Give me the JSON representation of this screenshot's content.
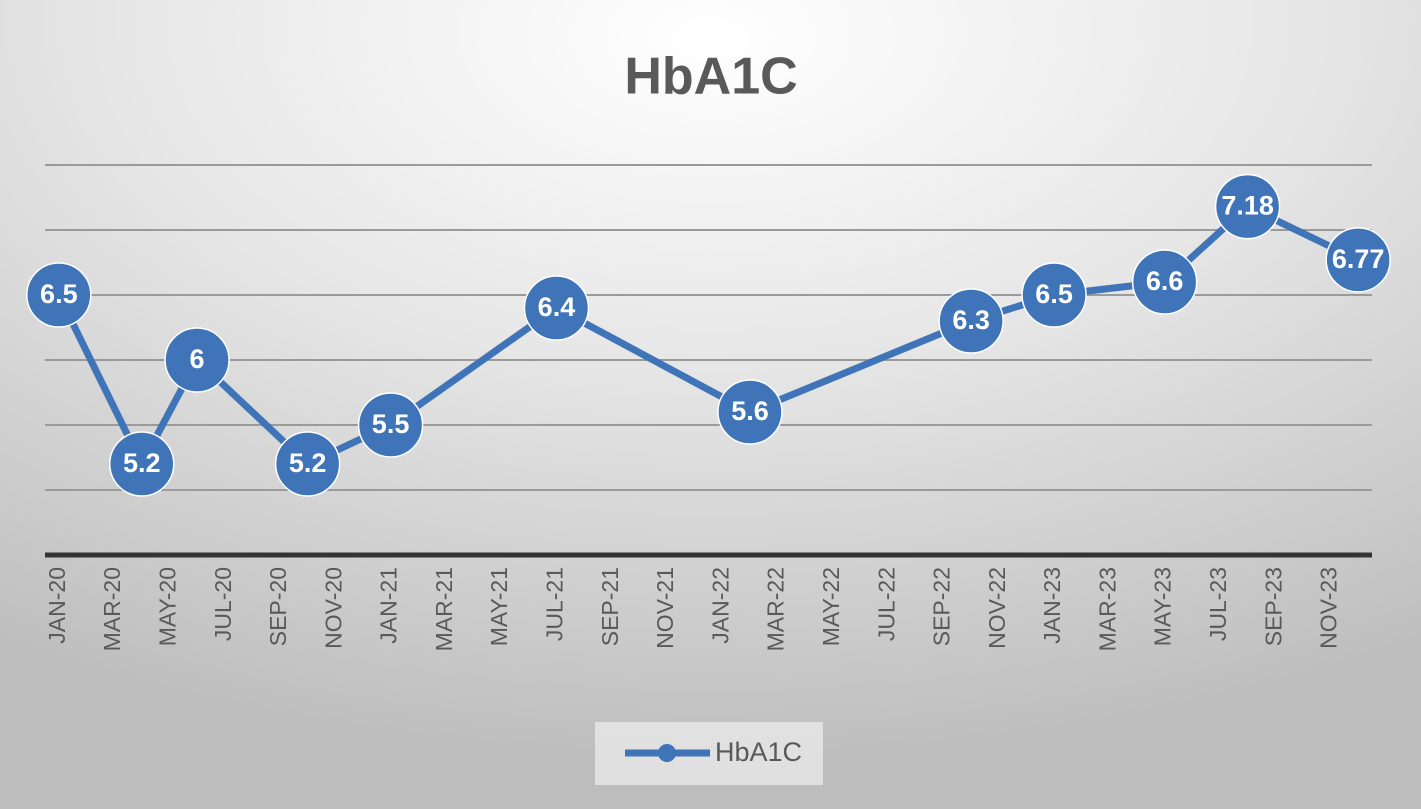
{
  "chart_data": {
    "type": "line",
    "title": "HbA1C",
    "x": [
      0,
      3,
      5,
      9,
      12,
      18,
      25,
      33,
      36,
      40,
      43,
      47
    ],
    "xlim": [
      -0.5,
      47.5
    ],
    "xticks": [
      {
        "value": 0,
        "label": "JAN-20"
      },
      {
        "value": 2,
        "label": "MAR-20"
      },
      {
        "value": 4,
        "label": "MAY-20"
      },
      {
        "value": 6,
        "label": "JUL-20"
      },
      {
        "value": 8,
        "label": "SEP-20"
      },
      {
        "value": 10,
        "label": "NOV-20"
      },
      {
        "value": 12,
        "label": "JAN-21"
      },
      {
        "value": 14,
        "label": "MAR-21"
      },
      {
        "value": 16,
        "label": "MAY-21"
      },
      {
        "value": 18,
        "label": "JUL-21"
      },
      {
        "value": 20,
        "label": "SEP-21"
      },
      {
        "value": 22,
        "label": "NOV-21"
      },
      {
        "value": 24,
        "label": "JAN-22"
      },
      {
        "value": 26,
        "label": "MAR-22"
      },
      {
        "value": 28,
        "label": "MAY-22"
      },
      {
        "value": 30,
        "label": "JUL-22"
      },
      {
        "value": 32,
        "label": "SEP-22"
      },
      {
        "value": 34,
        "label": "NOV-22"
      },
      {
        "value": 36,
        "label": "JAN-23"
      },
      {
        "value": 38,
        "label": "MAR-23"
      },
      {
        "value": 40,
        "label": "MAY-23"
      },
      {
        "value": 42,
        "label": "JUL-23"
      },
      {
        "value": 44,
        "label": "SEP-23"
      },
      {
        "value": 46,
        "label": "NOV-23"
      }
    ],
    "ylim": [
      4.5,
      7.5
    ],
    "yticks": [
      4.5,
      5,
      5.5,
      6,
      6.5,
      7,
      7.5
    ],
    "grid": true,
    "legend": "bottom",
    "series": [
      {
        "name": "HbA1C",
        "color": "#3f74b9",
        "values": [
          6.5,
          5.2,
          6,
          5.2,
          5.5,
          6.4,
          5.6,
          6.3,
          6.5,
          6.6,
          7.18,
          6.77
        ]
      }
    ]
  }
}
